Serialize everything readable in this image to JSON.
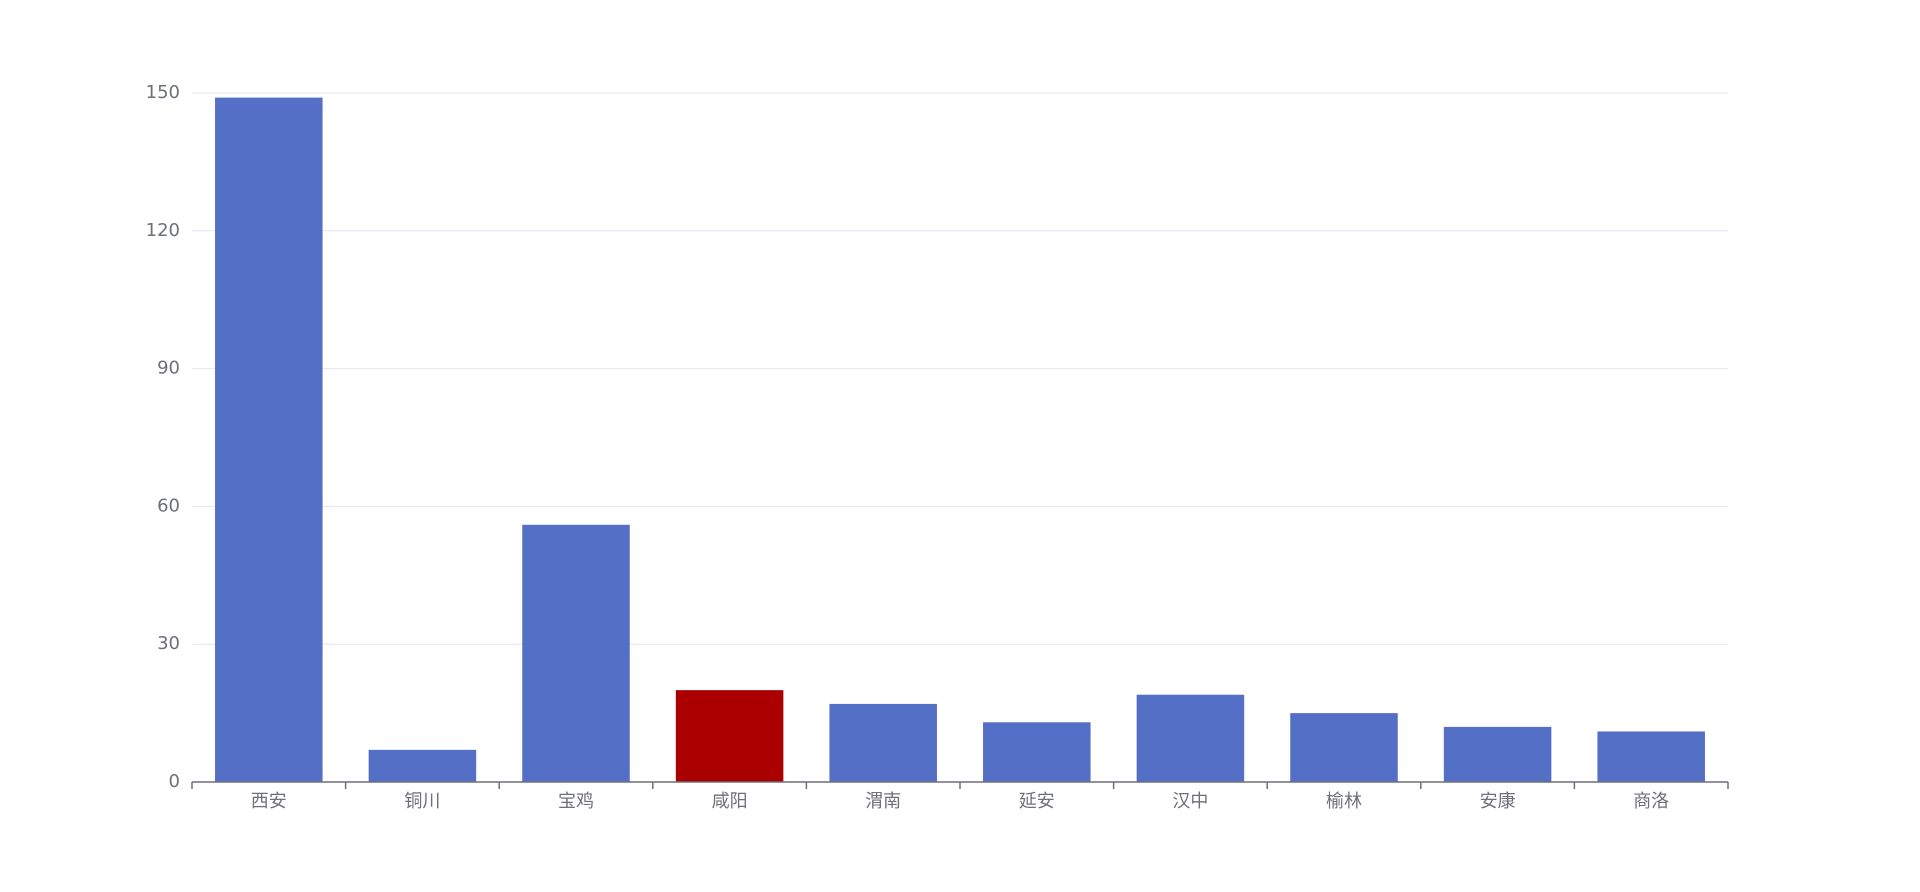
{
  "chart_data": {
    "type": "bar",
    "categories": [
      "西安",
      "铜川",
      "宝鸡",
      "咸阳",
      "渭南",
      "延安",
      "汉中",
      "榆林",
      "安康",
      "商洛"
    ],
    "values": [
      149,
      7,
      56,
      20,
      17,
      13,
      19,
      15,
      12,
      11
    ],
    "colors": [
      "#5470c6",
      "#5470c6",
      "#5470c6",
      "#aa0000",
      "#5470c6",
      "#5470c6",
      "#5470c6",
      "#5470c6",
      "#5470c6",
      "#5470c6"
    ],
    "ylim": [
      0,
      150
    ],
    "yticks": [
      0,
      30,
      60,
      90,
      120,
      150
    ],
    "grid": true
  }
}
